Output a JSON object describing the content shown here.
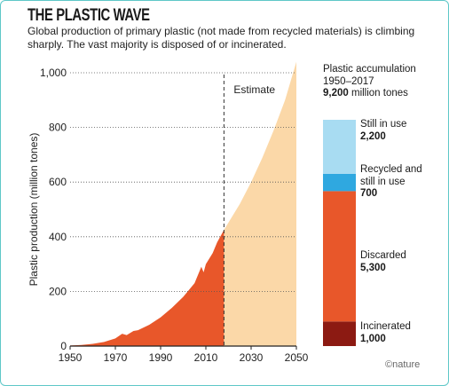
{
  "title": "THE PLASTIC WAVE",
  "subtitle": "Global production of primary plastic (not made from recycled materials) is climbing sharply. The vast majority is disposed of or incinerated.",
  "credit": "©nature",
  "colors": {
    "historical": "#e8572a",
    "estimate": "#fbd8a8",
    "still_in_use": "#a8dcf2",
    "recycled": "#2fa8e0",
    "discarded": "#e8572a",
    "incinerated": "#8c1a12"
  },
  "chart_data": [
    {
      "type": "area",
      "ylabel": "Plastic production (million tones)",
      "xlabel": "",
      "xlim": [
        1950,
        2050
      ],
      "ylim": [
        0,
        1000
      ],
      "x_ticks": [
        "1950",
        "1970",
        "1990",
        "2010",
        "2030",
        "2050"
      ],
      "y_ticks": [
        "0",
        "200",
        "400",
        "600",
        "800",
        "1,000"
      ],
      "grid": "horizontal dotted",
      "annotation": "Estimate",
      "estimate_start": 2018,
      "series": [
        {
          "segment": "historical",
          "points": [
            [
              1950,
              2
            ],
            [
              1955,
              4
            ],
            [
              1960,
              8
            ],
            [
              1965,
              15
            ],
            [
              1970,
              28
            ],
            [
              1973,
              45
            ],
            [
              1975,
              40
            ],
            [
              1978,
              55
            ],
            [
              1980,
              58
            ],
            [
              1985,
              78
            ],
            [
              1990,
              105
            ],
            [
              1995,
              140
            ],
            [
              2000,
              180
            ],
            [
              2005,
              230
            ],
            [
              2008,
              290
            ],
            [
              2009,
              270
            ],
            [
              2010,
              300
            ],
            [
              2013,
              340
            ],
            [
              2015,
              380
            ],
            [
              2017,
              410
            ],
            [
              2018,
              425
            ]
          ]
        },
        {
          "segment": "estimate",
          "points": [
            [
              2018,
              425
            ],
            [
              2025,
              520
            ],
            [
              2030,
              600
            ],
            [
              2035,
              690
            ],
            [
              2040,
              790
            ],
            [
              2045,
              900
            ],
            [
              2050,
              1040
            ]
          ]
        }
      ]
    },
    {
      "type": "bar",
      "title": "Plastic accumulation",
      "subtitle": "1950–2017",
      "total_value": "9,200",
      "total_unit": "million tones",
      "stacked": true,
      "segments": [
        {
          "name_lines": [
            "Incinerated"
          ],
          "value": 1000,
          "value_label": "1,000"
        },
        {
          "name_lines": [
            "Discarded"
          ],
          "value": 5300,
          "value_label": "5,300"
        },
        {
          "name_lines": [
            "Recycled and",
            "still in use"
          ],
          "value": 700,
          "value_label": "700"
        },
        {
          "name_lines": [
            "Still in use"
          ],
          "value": 2200,
          "value_label": "2,200"
        }
      ]
    }
  ]
}
